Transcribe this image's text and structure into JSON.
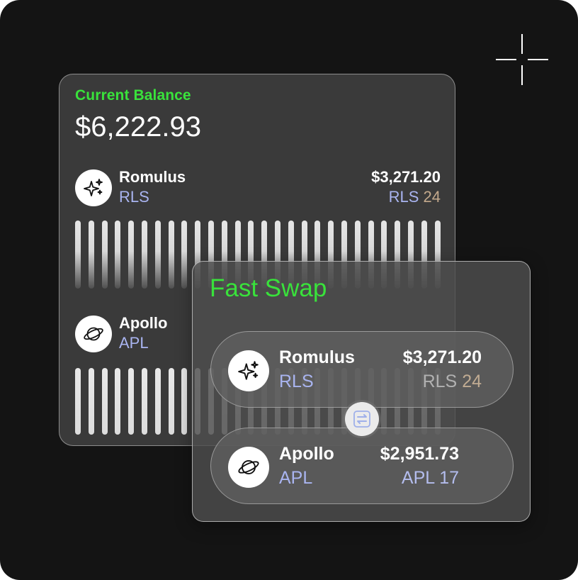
{
  "balance_card": {
    "label": "Current Balance",
    "amount": "$6,222.93",
    "assets": [
      {
        "name": "Romulus",
        "ticker": "RLS",
        "value": "$3,271.20",
        "sub_ticker": "RLS",
        "sub_amount": "24",
        "icon": "sparkles-icon"
      },
      {
        "name": "Apollo",
        "ticker": "APL",
        "icon": "planet-icon"
      }
    ]
  },
  "swap_card": {
    "title": "Fast Swap",
    "from": {
      "name": "Romulus",
      "ticker": "RLS",
      "value": "$3,271.20",
      "sub_ticker": "RLS",
      "sub_amount": "24",
      "icon": "sparkles-icon"
    },
    "to": {
      "name": "Apollo",
      "ticker": "APL",
      "value": "$2,951.73",
      "sub_ticker": "APL",
      "sub_amount": "17",
      "icon": "planet-icon"
    },
    "swap_icon": "swap-arrows-icon"
  },
  "colors": {
    "accent_green": "#39e23b",
    "ticker_blue": "#a9b4f0",
    "amount_tan": "#c3a98c",
    "background": "#141414"
  }
}
